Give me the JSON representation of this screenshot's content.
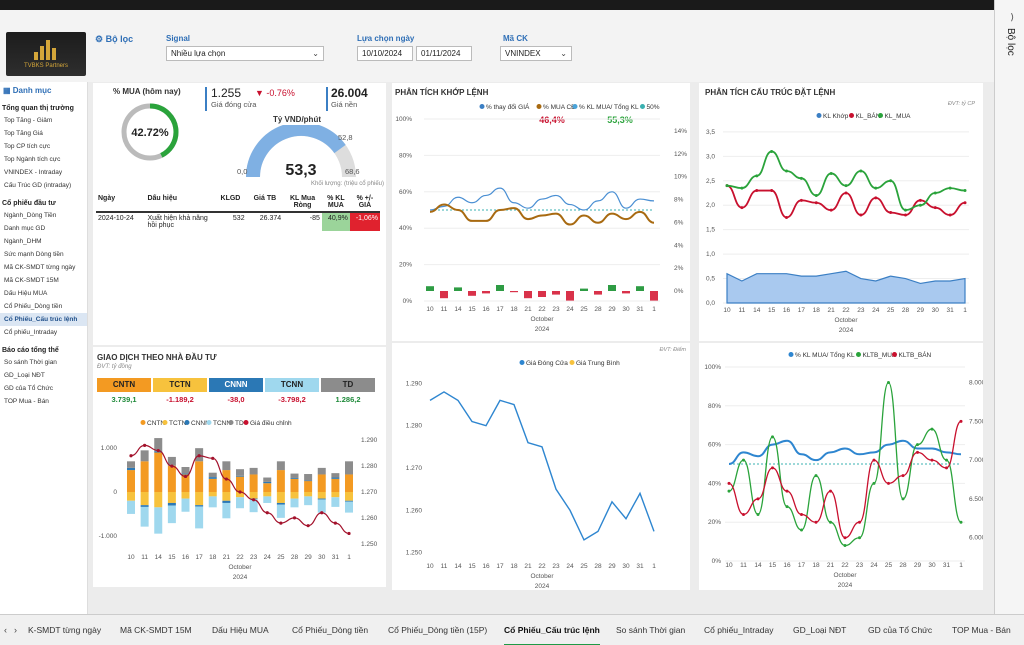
{
  "filters": {
    "title": "Bộ lọc",
    "signal_label": "Signal",
    "signal_value": "Nhiều lựa chọn",
    "date_label": "Lựa chọn ngày",
    "date_from": "10/10/2024",
    "date_to": "01/11/2024",
    "stock_label": "Mã CK",
    "stock_value": "VNINDEX",
    "side_label": "Bộ lọc"
  },
  "logo_text": "TVBKS Partners",
  "sidebar": {
    "header": "Danh mục",
    "sections": [
      {
        "title": "Tổng quan thị trường",
        "items": [
          "Top Tăng - Giảm",
          "Top Tăng Giá",
          "Top CP tích cực",
          "Top Ngành tích cực",
          "VNINDEX - Intraday",
          "Cấu Trúc GD (intraday)"
        ]
      },
      {
        "title": "Cổ phiếu đầu tư",
        "items": [
          "Ngành_Dòng Tiền",
          "Danh mục GD",
          "Ngành_DHM",
          "Sức mạnh Dòng tiền",
          "Mã CK-SMDT từng ngày",
          "Mã CK-SMDT 15M",
          "Dấu Hiệu MUA",
          "Cổ Phiếu_Dòng tiền",
          "Cổ Phiếu_Cấu trúc lệnh",
          "Cổ phiếu_Intraday"
        ]
      },
      {
        "title": "Báo cáo tổng thể",
        "items": [
          "So sánh Thời gian",
          "GD_Loại NĐT",
          "GD của Tổ Chức",
          "TOP Mua - Bán"
        ]
      }
    ],
    "active_item": "Cổ Phiếu_Cấu trúc lệnh"
  },
  "kpi": {
    "buy_pct_label": "% MUA (hôm nay)",
    "buy_pct_value": "42.72%",
    "buy_pct_fraction": 0.4272,
    "close_price": "1.255",
    "close_change": "-0.76%",
    "close_label": "Giá đóng cửa",
    "base_price": "26.004",
    "base_label": "Giá nền",
    "vnd_label": "Tỷ VND/phút",
    "vnd_value": "53,3",
    "vnd_max": "52,8",
    "vnd_min": "0,0",
    "vnd_right": "68,6",
    "vnd_note": "Khối lượng: (triệu cổ phiếu)"
  },
  "signal_table": {
    "headers": [
      "Ngày",
      "Dấu hiệu",
      "KLGD",
      "Giá TB",
      "KL Mua Ròng",
      "% KL MUA",
      "% +/- GIÁ"
    ],
    "rows": [
      [
        "2024-10-24",
        "Xuất hiện khả năng hồi phục",
        "532",
        "26.374",
        "-85",
        "40,9%",
        "-1,06%"
      ]
    ]
  },
  "investors": {
    "title": "GIAO DỊCH THEO NHÀ ĐẦU TƯ",
    "unit": "ĐVT: tỷ đồng",
    "boxes": [
      {
        "name": "CNTN",
        "value": "3.739,1",
        "color": "#f39a22"
      },
      {
        "name": "TCTN",
        "value": "-1.189,2",
        "color": "#f7c23d"
      },
      {
        "name": "CNNN",
        "value": "-38,0",
        "color": "#2b78b5"
      },
      {
        "name": "TCNN",
        "value": "-3.798,2",
        "color": "#9fd8ee"
      },
      {
        "name": "TD",
        "value": "1.286,2",
        "color": "#8c8c8c"
      }
    ]
  },
  "tabs": [
    "K-SMDT từng ngày",
    "Mã CK-SMDT 15M",
    "Dấu Hiệu MUA",
    "Cổ Phiếu_Dòng tiền",
    "Cổ Phiếu_Dòng tiền (15P)",
    "Cổ Phiếu_Cấu trúc lệnh",
    "So sánh Thời gian",
    "Cổ phiếu_Intraday",
    "GD_Loại NĐT",
    "GD của Tổ Chức",
    "TOP Mua - Bán"
  ],
  "active_tab": "Cổ Phiếu_Cấu trúc lệnh",
  "chart_data": [
    {
      "id": "investor-chart",
      "type": "bar",
      "categories": [
        "10",
        "11",
        "14",
        "15",
        "16",
        "17",
        "18",
        "21",
        "22",
        "23",
        "24",
        "25",
        "28",
        "29",
        "30",
        "31",
        "1"
      ],
      "axis_month": "October",
      "axis_year": "2024",
      "legend": [
        "CNTN",
        "TCTN",
        "CNNN",
        "TCNN",
        "TD",
        "Giá điều chỉnh"
      ],
      "series": [
        {
          "name": "CNTN",
          "values": [
            500,
            700,
            900,
            600,
            400,
            700,
            300,
            500,
            350,
            400,
            200,
            500,
            300,
            250,
            400,
            300,
            400
          ]
        },
        {
          "name": "TCTN",
          "values": [
            -200,
            -300,
            -350,
            -250,
            -150,
            -300,
            -100,
            -200,
            -120,
            -150,
            -100,
            -250,
            -150,
            -100,
            -150,
            -120,
            -200
          ]
        },
        {
          "name": "CNNN",
          "values": [
            50,
            -40,
            30,
            -60,
            20,
            -30,
            40,
            -50,
            20,
            -10,
            30,
            -40,
            20,
            10,
            -20,
            30,
            -20
          ]
        },
        {
          "name": "TCNN",
          "values": [
            -300,
            -450,
            -600,
            -400,
            -300,
            -500,
            -250,
            -350,
            -250,
            -300,
            -150,
            -300,
            -200,
            -200,
            -300,
            -220,
            -250
          ]
        },
        {
          "name": "TD",
          "values": [
            150,
            250,
            300,
            200,
            150,
            300,
            100,
            200,
            150,
            150,
            100,
            200,
            100,
            150,
            150,
            100,
            300
          ]
        }
      ],
      "line": {
        "name": "Giá điều chỉnh",
        "values": [
          1284,
          1288,
          1286,
          1280,
          1276,
          1284,
          1283,
          1275,
          1270,
          1267,
          1262,
          1258,
          1260,
          1257,
          1262,
          1258,
          1254
        ]
      },
      "y_left_ticks": [
        "1.000",
        "0",
        "-1.000"
      ],
      "y_left_range": [
        -1300,
        1300
      ],
      "y_right_ticks": [
        "1.290",
        "1.280",
        "1.270",
        "1.260",
        "1.250"
      ],
      "y_right_range": [
        1248,
        1292
      ]
    },
    {
      "id": "match-chart",
      "type": "line",
      "title": "PHÂN TÍCH KHỚP LỆNH",
      "categories": [
        "10",
        "11",
        "14",
        "15",
        "16",
        "17",
        "18",
        "21",
        "22",
        "23",
        "24",
        "25",
        "28",
        "29",
        "30",
        "31",
        "1"
      ],
      "axis_month": "October",
      "axis_year": "2024",
      "legend": [
        "% thay đổi GIÁ",
        "% MUA CĐ",
        "% KL MUA/ Tổng KL",
        "50%"
      ],
      "label_buy_cd": "46,4%",
      "label_buy_kl": "55,3%",
      "series": [
        {
          "name": "% thay đổi GIÁ",
          "values": [
            0.4,
            -0.6,
            0.3,
            -0.4,
            -0.2,
            0.5,
            -0.1,
            -0.6,
            -0.5,
            -0.3,
            -0.8,
            0.2,
            -0.3,
            0.5,
            -0.2,
            0.4,
            -0.8
          ]
        },
        {
          "name": "% MUA CĐ",
          "values": [
            49,
            53,
            50,
            44,
            44,
            50,
            51,
            45,
            47,
            48,
            42,
            47,
            43,
            48,
            45,
            49,
            43
          ]
        },
        {
          "name": "% KL MUA/ Tổng KL",
          "values": [
            50,
            52,
            57,
            54,
            58,
            62,
            54,
            51,
            56,
            58,
            53,
            50,
            55,
            60,
            51,
            56,
            55
          ]
        }
      ],
      "y_left_ticks": [
        "100%",
        "80%",
        "60%",
        "40%",
        "20%",
        "0%"
      ],
      "y_right_ticks": [
        "14%",
        "12%",
        "10%",
        "8%",
        "6%",
        "4%",
        "2%",
        "0%"
      ]
    },
    {
      "id": "close-chart",
      "type": "line",
      "unit": "ĐVT: Điểm",
      "categories": [
        "10",
        "11",
        "14",
        "15",
        "16",
        "17",
        "18",
        "21",
        "22",
        "23",
        "24",
        "25",
        "28",
        "29",
        "30",
        "31",
        "1"
      ],
      "axis_month": "October",
      "axis_year": "2024",
      "legend": [
        "Giá Đóng Cửa",
        "Giá Trung Bình"
      ],
      "series": [
        {
          "name": "Giá Đóng Cửa",
          "values": [
            1286,
            1288,
            1286,
            1281,
            1280,
            1286,
            1285,
            1276,
            1275,
            1265,
            1260,
            1253,
            1255,
            1262,
            1258,
            1264,
            1255
          ]
        }
      ],
      "y_ticks": [
        "1.290",
        "1.280",
        "1.270",
        "1.260",
        "1.250"
      ],
      "y_range": [
        1248,
        1292
      ]
    },
    {
      "id": "structure-chart",
      "type": "line",
      "title": "PHÂN TÍCH CẤU TRÚC ĐẶT LỆNH",
      "unit": "ĐVT: tỷ CP",
      "categories": [
        "10",
        "11",
        "14",
        "15",
        "16",
        "17",
        "18",
        "21",
        "22",
        "23",
        "24",
        "25",
        "28",
        "29",
        "30",
        "31",
        "1"
      ],
      "axis_month": "October",
      "axis_year": "2024",
      "legend": [
        "KL Khớp",
        "KL_BÁN",
        "KL_MUA"
      ],
      "series": [
        {
          "name": "KL Khớp",
          "values": [
            0.6,
            0.45,
            0.6,
            0.6,
            0.6,
            0.55,
            0.55,
            0.6,
            0.65,
            0.5,
            0.45,
            0.55,
            0.5,
            0.4,
            0.45,
            0.45,
            0.5
          ]
        },
        {
          "name": "KL_BÁN",
          "values": [
            2.4,
            1.95,
            2.3,
            2.3,
            1.75,
            2.1,
            2.05,
            1.9,
            2.25,
            1.8,
            2.15,
            1.85,
            1.8,
            2.1,
            1.95,
            1.8,
            2.05
          ]
        },
        {
          "name": "KL_MUA",
          "values": [
            2.4,
            2.35,
            2.6,
            3.1,
            2.7,
            2.55,
            2.2,
            2.65,
            2.4,
            2.7,
            2.35,
            2.5,
            1.9,
            2.0,
            2.25,
            2.35,
            2.3
          ]
        }
      ],
      "y_ticks": [
        "3,5",
        "3,0",
        "2,5",
        "2,0",
        "1,5",
        "1,0",
        "0,5",
        "0,0"
      ],
      "y_range": [
        0,
        3.6
      ]
    },
    {
      "id": "ratio-chart",
      "type": "line",
      "categories": [
        "10",
        "11",
        "14",
        "15",
        "16",
        "17",
        "18",
        "21",
        "22",
        "23",
        "24",
        "25",
        "28",
        "29",
        "30",
        "31",
        "1"
      ],
      "axis_month": "October",
      "axis_year": "2024",
      "legend": [
        "% KL MUA/ Tổng KL",
        "KLTB_MUA",
        "KLTB_BÁN"
      ],
      "series": [
        {
          "name": "% KL MUA/ Tổng KL",
          "values": [
            50,
            56,
            54,
            60,
            62,
            55,
            52,
            56,
            58,
            55,
            56,
            60,
            62,
            58,
            58,
            56,
            55
          ]
        },
        {
          "name": "KLTB_MUA",
          "values": [
            6600,
            7000,
            6300,
            7300,
            6400,
            6100,
            6800,
            6200,
            5900,
            6000,
            6700,
            8000,
            6500,
            7200,
            7400,
            7000,
            6200
          ]
        },
        {
          "name": "KLTB_BÁN",
          "values": [
            6700,
            6300,
            6500,
            6900,
            6600,
            6300,
            6200,
            6600,
            6000,
            6200,
            7000,
            6700,
            6800,
            7100,
            7000,
            6900,
            7500
          ]
        }
      ],
      "y_left_ticks": [
        "100%",
        "80%",
        "60%",
        "40%",
        "20%",
        "0%"
      ],
      "y_right_ticks": [
        "8.000",
        "7.500",
        "7.000",
        "6.500",
        "6.000"
      ],
      "y_right_range": [
        5700,
        8200
      ]
    }
  ]
}
